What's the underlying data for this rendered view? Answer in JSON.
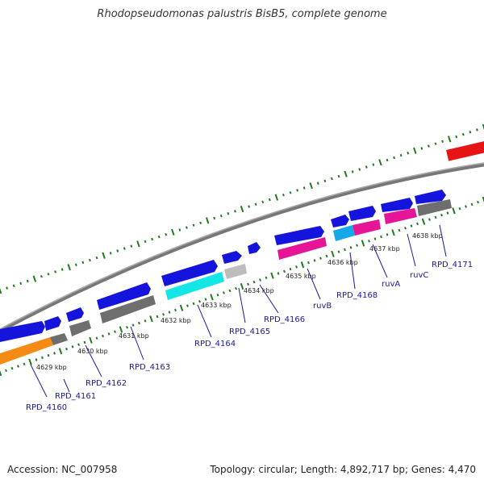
{
  "title": "Rhodopseudomonas palustris BisB5, complete genome",
  "footer": {
    "accession": "Accession: NC_007958",
    "summary": "Topology: circular; Length: 4,892,717 bp; Genes: 4,470"
  },
  "colors": {
    "backbone": "#888888",
    "ticks": "#1f7a1f",
    "label": "#1a1a99",
    "blue": "#1414dd",
    "gray": "#6e6e6e",
    "lightgray": "#bdbdbd",
    "cyan": "#14e6e6",
    "magenta": "#e61496",
    "orange": "#f58a14",
    "red": "#e61414"
  },
  "kbp_labels": [
    "4629 kbp",
    "4630 kbp",
    "4631 kbp",
    "4632 kbp",
    "4633 kbp",
    "4634 kbp",
    "4635 kbp",
    "4636 kbp",
    "4637 kbp",
    "4638 kbp"
  ],
  "gene_labels": [
    "RPD_4160",
    "RPD_4161",
    "RPD_4162",
    "RPD_4163",
    "RPD_4164",
    "RPD_4165",
    "RPD_4166",
    "ruvB",
    "RPD_4168",
    "ruvA",
    "ruvC",
    "RPD_4171"
  ]
}
